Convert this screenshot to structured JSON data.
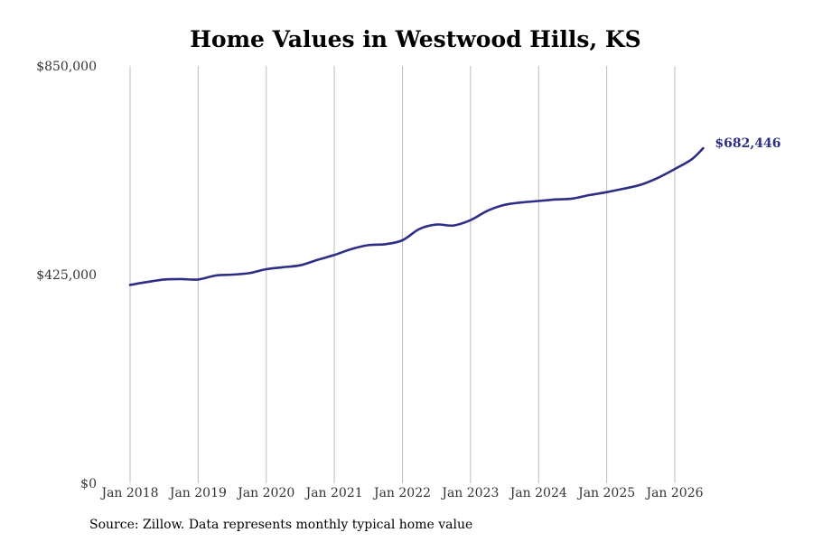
{
  "source_note": "Source: Zillow. Data represents monthly typical home value",
  "colors": {
    "line": "#2e2e86",
    "grid": "#bdbdbd",
    "background": "#ffffff"
  },
  "chart_data": {
    "type": "line",
    "title": "Home Values in Westwood Hills, KS",
    "xlabel": "",
    "ylabel": "",
    "ylim": [
      0,
      850000
    ],
    "y_ticks": [
      0,
      425000,
      850000
    ],
    "y_tick_labels": [
      "$0",
      "$425,000",
      "$850,000"
    ],
    "x_ticks": [
      "2018-01",
      "2019-01",
      "2020-01",
      "2021-01",
      "2022-01",
      "2023-01",
      "2024-01",
      "2025-01",
      "2026-01"
    ],
    "x_tick_labels": [
      "Jan 2018",
      "Jan 2019",
      "Jan 2020",
      "Jan 2021",
      "Jan 2022",
      "Jan 2023",
      "Jan 2024",
      "Jan 2025",
      "Jan 2026"
    ],
    "grid": "vertical",
    "end_label": "$682,446",
    "series": [
      {
        "x": [
          "2018-01",
          "2018-04",
          "2018-07",
          "2018-10",
          "2019-01",
          "2019-04",
          "2019-07",
          "2019-10",
          "2020-01",
          "2020-04",
          "2020-07",
          "2020-10",
          "2021-01",
          "2021-04",
          "2021-07",
          "2021-10",
          "2022-01",
          "2022-04",
          "2022-07",
          "2022-10",
          "2023-01",
          "2023-04",
          "2023-07",
          "2023-10",
          "2024-01",
          "2024-04",
          "2024-07",
          "2024-10",
          "2025-01",
          "2025-04",
          "2025-07",
          "2025-10",
          "2026-01",
          "2026-04",
          "2026-06"
        ],
        "values": [
          404000,
          410000,
          415000,
          416000,
          415000,
          423000,
          425000,
          428000,
          436000,
          440000,
          444000,
          455000,
          465000,
          477000,
          485000,
          487000,
          495000,
          518000,
          527000,
          525000,
          536000,
          555000,
          567000,
          572000,
          575000,
          578000,
          580000,
          587000,
          593000,
          600000,
          608000,
          622000,
          640000,
          660000,
          682446
        ]
      }
    ]
  }
}
